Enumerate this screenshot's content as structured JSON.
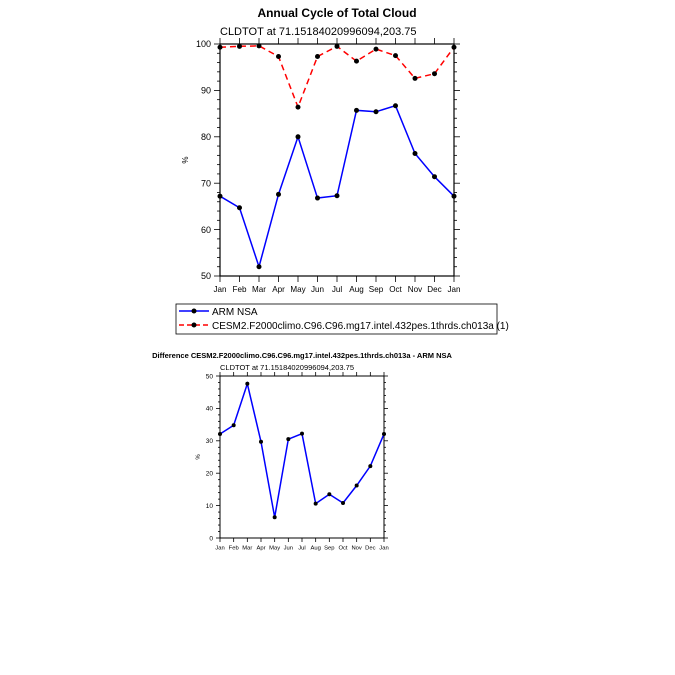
{
  "chart_data": [
    {
      "type": "line",
      "title": "Annual Cycle of Total Cloud",
      "subtitle": "CLDTOT at 71.15184020996094,203.75",
      "ylabel": "%",
      "xlabel": "",
      "categories": [
        "Jan",
        "Feb",
        "Mar",
        "Apr",
        "May",
        "Jun",
        "Jul",
        "Aug",
        "Sep",
        "Oct",
        "Nov",
        "Dec",
        "Jan"
      ],
      "ylim": [
        50,
        100
      ],
      "yticks": [
        50,
        60,
        70,
        80,
        90,
        100
      ],
      "grid": false,
      "legend": "below",
      "series": [
        {
          "name": "ARM NSA",
          "color": "#0000ff",
          "dash": "solid",
          "values": [
            67.2,
            64.7,
            52.0,
            67.6,
            80.0,
            66.8,
            67.3,
            85.7,
            85.4,
            86.7,
            76.4,
            71.4,
            67.2
          ]
        },
        {
          "name": "CESM2.F2000climo.C96.C96.mg17.intel.432pes.1thrds.ch013a (1)",
          "color": "#ff0000",
          "dash": "dashed",
          "values": [
            99.3,
            99.5,
            99.6,
            97.3,
            86.4,
            97.3,
            99.5,
            96.3,
            98.9,
            97.5,
            92.6,
            93.6,
            99.3
          ]
        }
      ]
    },
    {
      "type": "line",
      "title": "Difference CESM2.F2000climo.C96.C96.mg17.intel.432pes.1thrds.ch013a - ARM NSA",
      "subtitle": "CLDTOT at 71.15184020996094,203.75",
      "ylabel": "%",
      "xlabel": "",
      "categories": [
        "Jan",
        "Feb",
        "Mar",
        "Apr",
        "May",
        "Jun",
        "Jul",
        "Aug",
        "Sep",
        "Oct",
        "Nov",
        "Dec",
        "Jan"
      ],
      "ylim": [
        0,
        50
      ],
      "yticks": [
        0,
        10,
        20,
        30,
        40,
        50
      ],
      "grid": false,
      "series": [
        {
          "name": "",
          "color": "#0000ff",
          "dash": "solid",
          "values": [
            32.1,
            34.8,
            47.6,
            29.7,
            6.4,
            30.5,
            32.2,
            10.6,
            13.5,
            10.8,
            16.2,
            22.2,
            32.1
          ]
        }
      ]
    }
  ]
}
